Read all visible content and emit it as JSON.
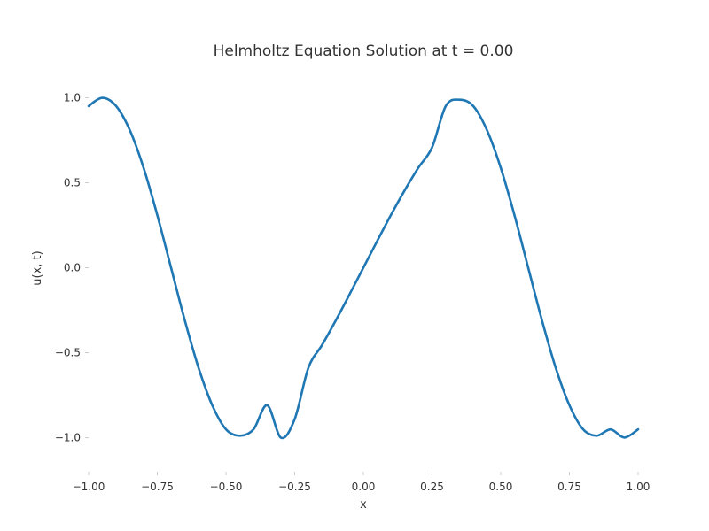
{
  "chart_data": {
    "type": "line",
    "title": "Helmholtz Equation Solution at t = 0.00",
    "xlabel": "x",
    "ylabel": "u(x, t)",
    "xlim": [
      -1.0,
      1.0
    ],
    "ylim": [
      -1.2,
      1.2
    ],
    "grid": false,
    "legend": "none",
    "x_ticks": [
      {
        "value": -1.0,
        "label": "−1.00"
      },
      {
        "value": -0.75,
        "label": "−0.75"
      },
      {
        "value": -0.5,
        "label": "−0.50"
      },
      {
        "value": -0.25,
        "label": "−0.25"
      },
      {
        "value": 0.0,
        "label": "0.00"
      },
      {
        "value": 0.25,
        "label": "0.25"
      },
      {
        "value": 0.5,
        "label": "0.50"
      },
      {
        "value": 0.75,
        "label": "0.75"
      },
      {
        "value": 1.0,
        "label": "1.00"
      }
    ],
    "y_ticks": [
      {
        "value": 1.0,
        "label": "1.0"
      },
      {
        "value": 0.5,
        "label": "0.5"
      },
      {
        "value": 0.0,
        "label": "0.0"
      },
      {
        "value": -0.5,
        "label": "−0.5"
      },
      {
        "value": -1.0,
        "label": "−1.0"
      }
    ],
    "series": [
      {
        "color": "#1f77b4",
        "x": [
          -1.0,
          -0.95,
          -0.9,
          -0.85,
          -0.8,
          -0.75,
          -0.7,
          -0.65,
          -0.6,
          -0.55,
          -0.5,
          -0.45,
          -0.4,
          -0.35,
          -0.3,
          -0.25,
          -0.2,
          -0.15,
          -0.1,
          -0.05,
          0.0,
          0.05,
          0.1,
          0.15,
          0.2,
          0.25,
          0.3,
          0.35,
          0.4,
          0.45,
          0.5,
          0.55,
          0.6,
          0.65,
          0.7,
          0.75,
          0.8,
          0.85,
          0.9,
          0.95,
          1.0
        ],
        "y": [
          0.951,
          0.999,
          0.951,
          0.809,
          0.588,
          0.309,
          0.0,
          -0.309,
          -0.588,
          -0.809,
          -0.951,
          -0.988,
          -0.951,
          -0.809,
          -1.0,
          -0.891,
          -0.588,
          -0.454,
          -0.309,
          -0.156,
          0.0,
          0.156,
          0.309,
          0.454,
          0.588,
          0.707,
          0.951,
          0.988,
          0.951,
          0.809,
          0.588,
          0.309,
          0.0,
          -0.309,
          -0.588,
          -0.809,
          -0.951,
          -0.988,
          -0.951,
          -0.999,
          -0.951
        ]
      }
    ]
  }
}
